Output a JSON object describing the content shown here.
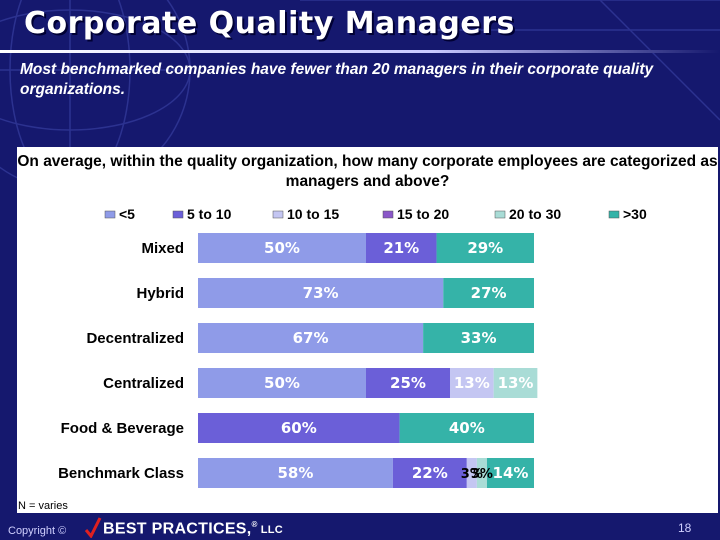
{
  "slide": {
    "title": "Corporate Quality Managers",
    "subtitle": "Most benchmarked companies have fewer than 20 managers in their corporate quality organizations.",
    "n_note": "N = varies",
    "page_number": "18"
  },
  "footer": {
    "copyright": "Copyright ©",
    "brand": "BEST PRACTICES,",
    "brand_mark": "®",
    "brand_suffix": "LLC"
  },
  "chart_data": {
    "type": "bar",
    "orientation": "horizontal",
    "stacked": true,
    "percent_stacked": true,
    "title": "On average, within the quality organization, how many corporate employees are categorized as managers and above?",
    "legend_position": "top",
    "categories": [
      "Mixed",
      "Hybrid",
      "Decentralized",
      "Centralized",
      "Food & Beverage",
      "Benchmark Class"
    ],
    "series": [
      {
        "name": "<5",
        "color": "#8f9be8",
        "values": [
          50,
          73,
          67,
          50,
          0,
          58
        ],
        "labels": [
          "50%",
          "73%",
          "67%",
          "50%",
          "",
          "58%"
        ]
      },
      {
        "name": "5 to 10",
        "color": "#6b5fd8",
        "values": [
          21,
          0,
          0,
          25,
          60,
          22
        ],
        "labels": [
          "21%",
          "",
          "",
          "25%",
          "60%",
          "22%"
        ]
      },
      {
        "name": "10 to 15",
        "color": "#c4c6f2",
        "values": [
          0,
          0,
          0,
          13,
          0,
          3
        ],
        "labels": [
          "",
          "",
          "",
          "13%",
          "",
          "3%"
        ]
      },
      {
        "name": "15 to 20",
        "color": "#8a57c8",
        "values": [
          0,
          0,
          0,
          0,
          0,
          0
        ],
        "labels": [
          "",
          "",
          "",
          "",
          "",
          ""
        ]
      },
      {
        "name": "20 to 30",
        "color": "#a9dcd6",
        "values": [
          0,
          0,
          0,
          13,
          0,
          3
        ],
        "labels": [
          "",
          "",
          "",
          "13%",
          "",
          "3%"
        ]
      },
      {
        "name": ">30",
        "color": "#35b3a8",
        "values": [
          29,
          27,
          33,
          0,
          40,
          14
        ],
        "labels": [
          "29%",
          "27%",
          "33%",
          "",
          "40%",
          "14%"
        ]
      }
    ],
    "xlim": [
      0,
      100
    ]
  }
}
